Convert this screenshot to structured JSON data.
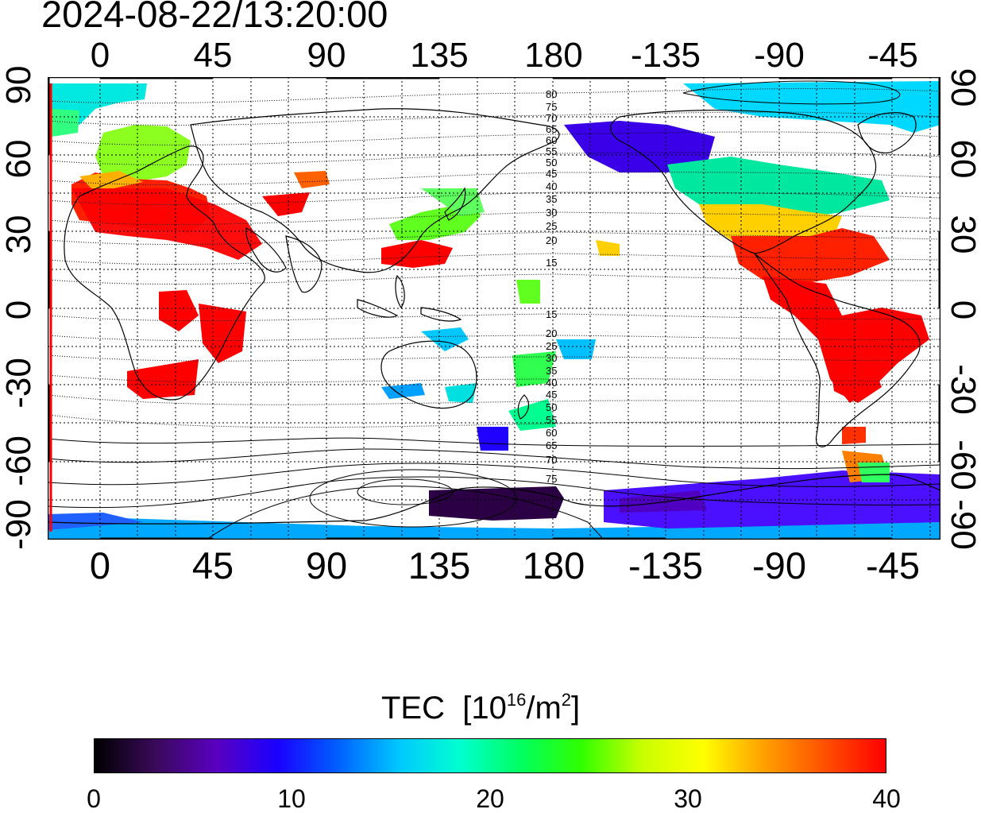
{
  "header": {
    "timestamp": "2024-08-22/13:20:00"
  },
  "axes": {
    "top_lon_labels": [
      "0",
      "45",
      "90",
      "135",
      "180",
      "-135",
      "-90",
      "-45"
    ],
    "bottom_lon_labels": [
      "0",
      "45",
      "90",
      "135",
      "180",
      "-135",
      "-90",
      "-45"
    ],
    "left_lat_labels": [
      "90",
      "60",
      "30",
      "0",
      "-30",
      "-60",
      "-90"
    ],
    "right_lat_labels": [
      "90",
      "60",
      "30",
      "0",
      "-30",
      "-60",
      "-90"
    ]
  },
  "contour_labels_north": [
    "80",
    "75",
    "70",
    "65",
    "60",
    "55",
    "50",
    "45",
    "40",
    "35",
    "30",
    "25",
    "20",
    "15"
  ],
  "contour_labels_south": [
    "15",
    "20",
    "25",
    "30",
    "35",
    "40",
    "45",
    "50",
    "55",
    "60",
    "65",
    "70",
    "75"
  ],
  "colorbar": {
    "title": "TEC",
    "unit_open": "[10",
    "unit_exp1": "16",
    "unit_mid": "/m",
    "unit_exp2": "2",
    "unit_close": "]",
    "tick_labels": [
      "0",
      "10",
      "20",
      "30",
      "40"
    ],
    "colors": [
      "#000000",
      "#3a0a5a",
      "#5a00c0",
      "#1a00ff",
      "#0060ff",
      "#00c8ff",
      "#00ffd0",
      "#00ff60",
      "#30ff00",
      "#c8ff00",
      "#ffff00",
      "#ffa000",
      "#ff5000",
      "#ff0000"
    ]
  },
  "map_colors": {
    "land_outline": "#000000",
    "high_tec": "#ff0000",
    "mid_tec": "#00ff40",
    "low_tec": "#2a00ff",
    "very_low_tec": "#2b0040",
    "polar_cyan": "#00e0ff"
  }
}
